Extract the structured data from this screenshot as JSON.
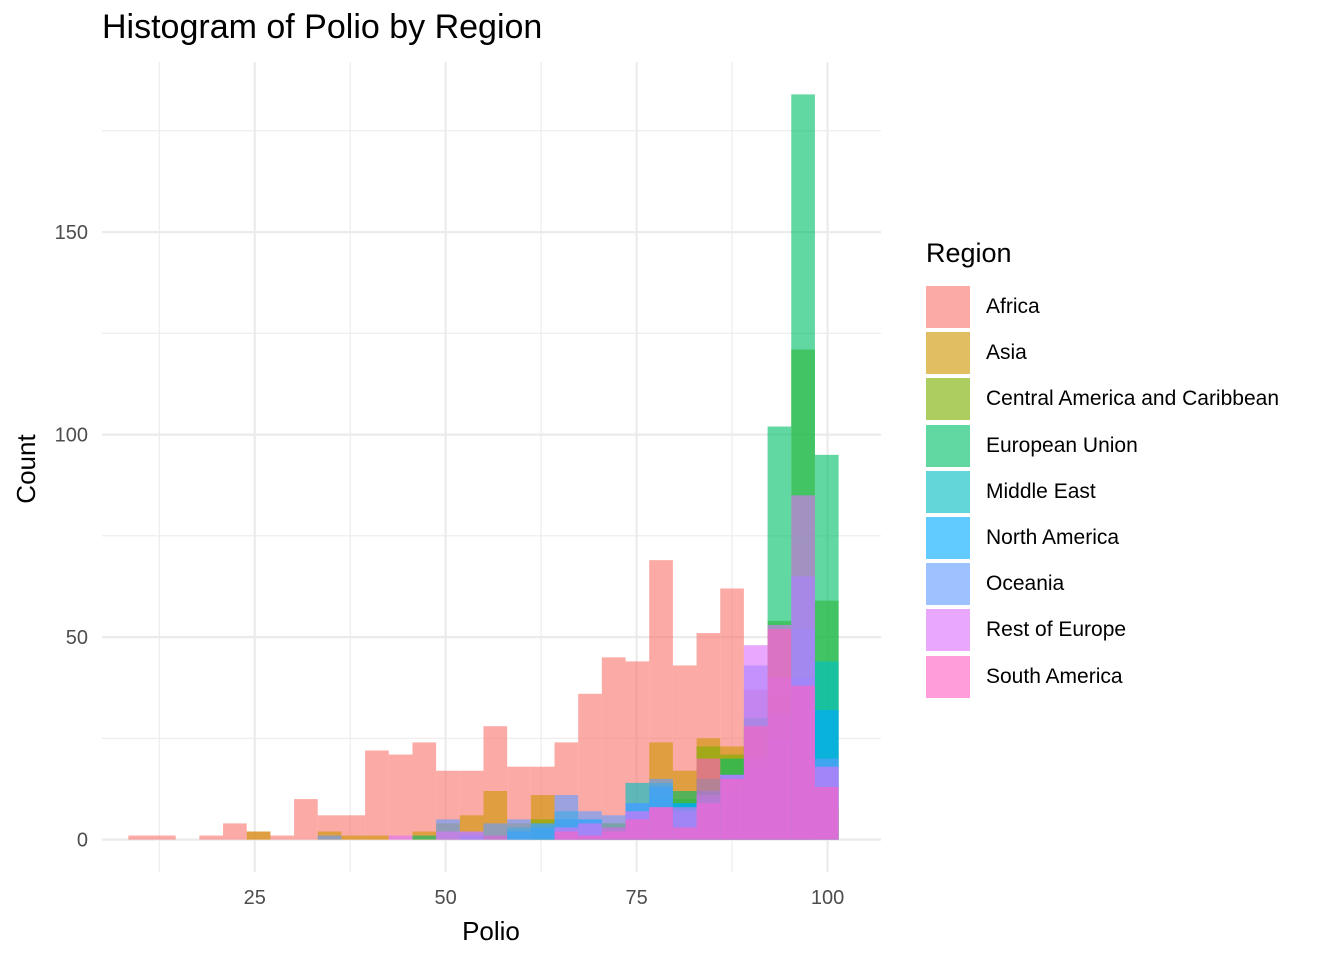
{
  "chart_data": {
    "type": "bar",
    "title": "Histogram of Polio by Region",
    "xlabel": "Polio",
    "ylabel": "Count",
    "xlim": [
      5,
      107
    ],
    "ylim": [
      -8,
      192
    ],
    "xticks": [
      25,
      50,
      75,
      100
    ],
    "yticks": [
      0,
      50,
      100,
      150
    ],
    "grid": true,
    "legend_title": "Region",
    "legend_position": "right",
    "bin_width": 3.1,
    "bin_centers": [
      10.0,
      13.1,
      16.2,
      19.3,
      22.4,
      25.5,
      28.6,
      31.7,
      34.8,
      37.9,
      41.0,
      44.1,
      47.2,
      50.3,
      53.4,
      56.5,
      59.6,
      62.7,
      65.8,
      68.9,
      72.0,
      75.1,
      78.2,
      81.3,
      84.4,
      87.5,
      90.6,
      93.7,
      96.8,
      99.9
    ],
    "series": [
      {
        "name": "Africa",
        "color": "#F8766D",
        "values": [
          1,
          1,
          0,
          1,
          4,
          2,
          1,
          10,
          6,
          6,
          22,
          21,
          24,
          17,
          17,
          28,
          18,
          18,
          24,
          36,
          45,
          44,
          69,
          43,
          51,
          62,
          37,
          32,
          18,
          0
        ]
      },
      {
        "name": "Asia",
        "color": "#CD9600",
        "values": [
          0,
          0,
          0,
          0,
          0,
          2,
          0,
          0,
          2,
          1,
          1,
          0,
          2,
          4,
          6,
          12,
          4,
          11,
          5,
          4,
          4,
          8,
          24,
          17,
          25,
          23,
          30,
          35,
          32,
          8
        ]
      },
      {
        "name": "Central America and Caribbean",
        "color": "#7CAE00",
        "values": [
          0,
          0,
          0,
          0,
          0,
          0,
          0,
          0,
          0,
          0,
          0,
          0,
          0,
          0,
          0,
          0,
          0,
          5,
          0,
          3,
          4,
          6,
          8,
          10,
          23,
          21,
          28,
          54,
          121,
          59
        ]
      },
      {
        "name": "European Union",
        "color": "#00BE67",
        "values": [
          0,
          0,
          0,
          0,
          0,
          0,
          0,
          0,
          0,
          0,
          0,
          0,
          1,
          0,
          0,
          0,
          0,
          0,
          0,
          0,
          2,
          5,
          10,
          12,
          15,
          20,
          30,
          102,
          184,
          95
        ]
      },
      {
        "name": "Middle East",
        "color": "#00BFC4",
        "values": [
          0,
          0,
          0,
          0,
          0,
          0,
          0,
          0,
          0,
          0,
          0,
          0,
          0,
          0,
          0,
          0,
          3,
          4,
          7,
          5,
          3,
          14,
          14,
          9,
          10,
          11,
          20,
          31,
          52,
          44
        ]
      },
      {
        "name": "North America",
        "color": "#00A9FF",
        "values": [
          0,
          0,
          0,
          0,
          0,
          0,
          0,
          0,
          0,
          0,
          0,
          0,
          0,
          0,
          1,
          1,
          2,
          3,
          5,
          5,
          3,
          9,
          13,
          9,
          12,
          16,
          18,
          25,
          40,
          32
        ]
      },
      {
        "name": "Oceania",
        "color": "#619CFF",
        "values": [
          0,
          0,
          0,
          0,
          0,
          0,
          0,
          0,
          1,
          0,
          0,
          0,
          0,
          5,
          2,
          4,
          5,
          4,
          11,
          7,
          6,
          9,
          15,
          7,
          11,
          16,
          43,
          40,
          65,
          20
        ]
      },
      {
        "name": "Rest of Europe",
        "color": "#DB72FB",
        "values": [
          0,
          0,
          0,
          0,
          0,
          0,
          0,
          0,
          0,
          0,
          0,
          1,
          0,
          2,
          2,
          0,
          0,
          0,
          3,
          4,
          2,
          7,
          8,
          8,
          9,
          16,
          48,
          53,
          85,
          18
        ]
      },
      {
        "name": "South America",
        "color": "#FF61C3",
        "values": [
          0,
          0,
          0,
          0,
          0,
          0,
          0,
          0,
          0,
          0,
          0,
          0,
          0,
          0,
          0,
          1,
          0,
          0,
          2,
          1,
          3,
          5,
          8,
          3,
          20,
          15,
          28,
          52,
          38,
          13
        ]
      }
    ]
  }
}
